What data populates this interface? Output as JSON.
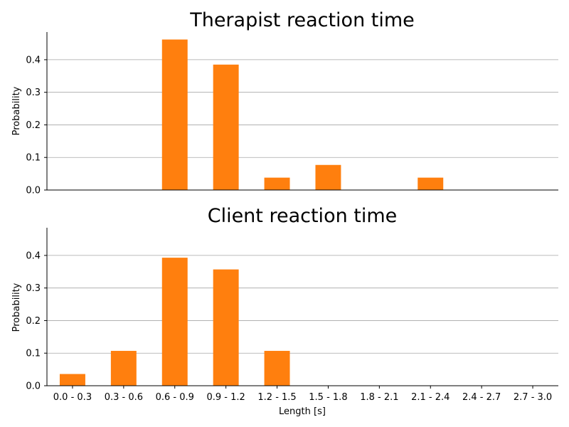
{
  "chart_data": [
    {
      "type": "bar",
      "title": "Therapist reaction time",
      "xlabel": "",
      "ylabel": "Probability",
      "categories": [
        "0.0 - 0.3",
        "0.3 - 0.6",
        "0.6 - 0.9",
        "0.9 - 1.2",
        "1.2 - 1.5",
        "1.5 - 1.8",
        "1.8 - 2.1",
        "2.1 - 2.4",
        "2.4 - 2.7",
        "2.7 - 3.0"
      ],
      "values": [
        0,
        0,
        0.462,
        0.385,
        0.038,
        0.077,
        0,
        0.038,
        0,
        0
      ],
      "ylim": [
        0,
        0.485
      ],
      "yticks": [
        "0.0",
        "0.1",
        "0.2",
        "0.3",
        "0.4"
      ],
      "show_x_ticklabels": false,
      "grid": true,
      "color": "#ff7f0e"
    },
    {
      "type": "bar",
      "title": "Client reaction time",
      "xlabel": "Length [s]",
      "ylabel": "Probability",
      "categories": [
        "0.0 - 0.3",
        "0.3 - 0.6",
        "0.6 - 0.9",
        "0.9 - 1.2",
        "1.2 - 1.5",
        "1.5 - 1.8",
        "1.8 - 2.1",
        "2.1 - 2.4",
        "2.4 - 2.7",
        "2.7 - 3.0"
      ],
      "values": [
        0.036,
        0.107,
        0.393,
        0.357,
        0.107,
        0,
        0,
        0,
        0,
        0
      ],
      "ylim": [
        0,
        0.485
      ],
      "yticks": [
        "0.0",
        "0.1",
        "0.2",
        "0.3",
        "0.4"
      ],
      "show_x_ticklabels": true,
      "grid": true,
      "color": "#ff7f0e"
    }
  ]
}
